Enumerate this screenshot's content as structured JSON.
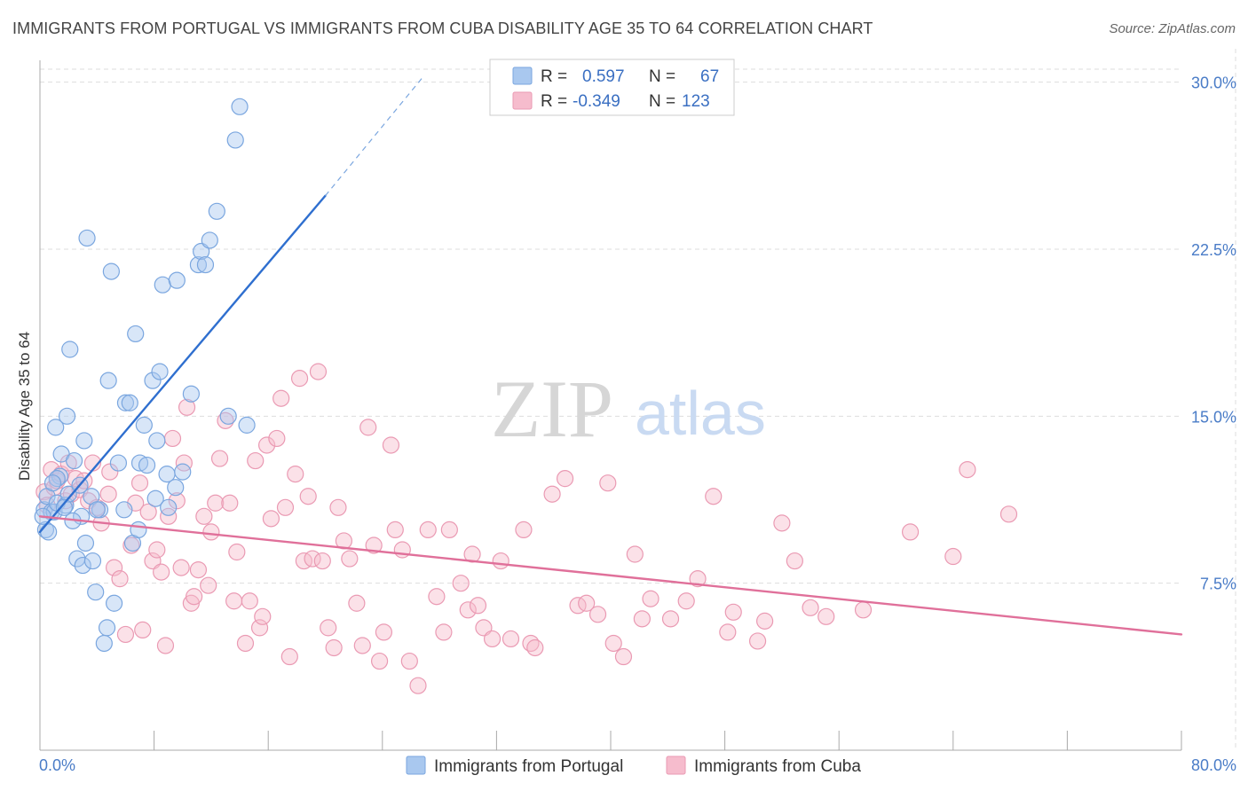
{
  "header": {
    "title": "IMMIGRANTS FROM PORTUGAL VS IMMIGRANTS FROM CUBA DISABILITY AGE 35 TO 64 CORRELATION CHART",
    "source": "Source: ZipAtlas.com"
  },
  "watermark": {
    "zip": "ZIP",
    "atlas": "atlas"
  },
  "legend": {
    "r_label": "R =",
    "n_label": "N =",
    "portugal": {
      "r": "0.597",
      "n": "67"
    },
    "cuba": {
      "r": "-0.349",
      "n": "123"
    }
  },
  "colors": {
    "portugal_fill": "#a9c8ef",
    "portugal_stroke": "#7aa6df",
    "portugal_line": "#2f6fcf",
    "cuba_fill": "#f6bccd",
    "cuba_stroke": "#ea9ab3",
    "cuba_line": "#e0709a",
    "grid": "#dddddd",
    "axis_text": "#4a7cc7"
  },
  "chart_data": {
    "type": "scatter",
    "title": "IMMIGRANTS FROM PORTUGAL VS IMMIGRANTS FROM CUBA DISABILITY AGE 35 TO 64 CORRELATION CHART",
    "xlabel": "",
    "ylabel": "Disability Age 35 to 64",
    "xlim": [
      0,
      80
    ],
    "ylim": [
      0,
      31.5
    ],
    "x_tick_labels": [
      "0.0%",
      "80.0%"
    ],
    "y_ticks": [
      7.5,
      15.0,
      22.5,
      30.0
    ],
    "y_tick_labels": [
      "7.5%",
      "15.0%",
      "22.5%",
      "30.0%"
    ],
    "grid": true,
    "legend_position": "top-center",
    "series": [
      {
        "name": "Immigrants from Portugal",
        "r": 0.597,
        "n": 67,
        "trend": {
          "x": [
            0.0,
            20.0
          ],
          "y": [
            9.8,
            24.9
          ],
          "dashed_to": [
            26.8,
            30.2
          ]
        },
        "points": [
          [
            0.3,
            10.8
          ],
          [
            0.5,
            11.4
          ],
          [
            0.4,
            9.9
          ],
          [
            0.6,
            9.8
          ],
          [
            0.8,
            10.7
          ],
          [
            1.0,
            10.7
          ],
          [
            1.2,
            11.1
          ],
          [
            1.4,
            12.3
          ],
          [
            1.1,
            14.5
          ],
          [
            1.5,
            13.3
          ],
          [
            1.8,
            11.0
          ],
          [
            2.0,
            11.5
          ],
          [
            1.9,
            15.0
          ],
          [
            2.1,
            18.0
          ],
          [
            2.4,
            13.0
          ],
          [
            2.6,
            8.6
          ],
          [
            2.8,
            11.9
          ],
          [
            2.9,
            10.5
          ],
          [
            3.0,
            8.3
          ],
          [
            3.1,
            13.9
          ],
          [
            3.2,
            9.3
          ],
          [
            3.3,
            23.0
          ],
          [
            3.6,
            11.4
          ],
          [
            3.7,
            8.5
          ],
          [
            3.9,
            7.1
          ],
          [
            4.2,
            10.8
          ],
          [
            4.5,
            4.8
          ],
          [
            4.7,
            5.5
          ],
          [
            4.8,
            16.6
          ],
          [
            5.0,
            21.5
          ],
          [
            5.2,
            6.6
          ],
          [
            5.5,
            12.9
          ],
          [
            5.9,
            10.8
          ],
          [
            6.0,
            15.6
          ],
          [
            6.3,
            15.6
          ],
          [
            6.5,
            9.3
          ],
          [
            6.7,
            18.7
          ],
          [
            6.9,
            9.9
          ],
          [
            7.0,
            12.9
          ],
          [
            7.3,
            14.6
          ],
          [
            7.5,
            12.8
          ],
          [
            7.9,
            16.6
          ],
          [
            8.1,
            11.3
          ],
          [
            8.2,
            13.9
          ],
          [
            8.4,
            17.0
          ],
          [
            8.6,
            20.9
          ],
          [
            8.9,
            12.4
          ],
          [
            9.0,
            10.9
          ],
          [
            9.5,
            11.8
          ],
          [
            9.6,
            21.1
          ],
          [
            10.0,
            12.5
          ],
          [
            10.6,
            16.0
          ],
          [
            11.1,
            21.8
          ],
          [
            11.3,
            22.4
          ],
          [
            11.6,
            21.8
          ],
          [
            11.9,
            22.9
          ],
          [
            12.4,
            24.2
          ],
          [
            13.2,
            15.0
          ],
          [
            13.7,
            27.4
          ],
          [
            14.0,
            28.9
          ],
          [
            14.5,
            14.6
          ],
          [
            1.2,
            12.2
          ],
          [
            2.3,
            10.3
          ],
          [
            0.2,
            10.5
          ],
          [
            0.9,
            12.0
          ],
          [
            1.7,
            10.9
          ],
          [
            4.0,
            10.8
          ]
        ]
      },
      {
        "name": "Immigrants from Cuba",
        "r": -0.349,
        "n": 123,
        "trend": {
          "x": [
            0.0,
            80.0
          ],
          "y": [
            10.5,
            5.2
          ]
        },
        "points": [
          [
            0.3,
            11.6
          ],
          [
            0.5,
            11.0
          ],
          [
            0.8,
            12.6
          ],
          [
            1.0,
            11.8
          ],
          [
            1.2,
            12.1
          ],
          [
            1.5,
            12.4
          ],
          [
            1.8,
            11.2
          ],
          [
            2.0,
            12.9
          ],
          [
            2.2,
            11.5
          ],
          [
            2.5,
            12.2
          ],
          [
            2.8,
            11.7
          ],
          [
            3.1,
            12.1
          ],
          [
            3.4,
            11.2
          ],
          [
            3.7,
            12.9
          ],
          [
            4.0,
            10.9
          ],
          [
            4.3,
            10.2
          ],
          [
            4.8,
            11.5
          ],
          [
            4.9,
            12.5
          ],
          [
            5.2,
            8.2
          ],
          [
            5.6,
            7.7
          ],
          [
            6.0,
            5.2
          ],
          [
            6.4,
            9.2
          ],
          [
            6.7,
            11.1
          ],
          [
            7.0,
            12.0
          ],
          [
            7.2,
            5.4
          ],
          [
            7.6,
            10.7
          ],
          [
            7.9,
            8.5
          ],
          [
            8.2,
            9.0
          ],
          [
            8.5,
            8.0
          ],
          [
            8.8,
            4.7
          ],
          [
            9.0,
            10.5
          ],
          [
            9.3,
            14.0
          ],
          [
            9.6,
            11.2
          ],
          [
            9.9,
            8.2
          ],
          [
            10.1,
            12.9
          ],
          [
            10.3,
            15.4
          ],
          [
            10.6,
            6.6
          ],
          [
            10.8,
            6.9
          ],
          [
            11.1,
            8.1
          ],
          [
            11.5,
            10.5
          ],
          [
            11.8,
            7.4
          ],
          [
            12.0,
            9.8
          ],
          [
            12.3,
            11.1
          ],
          [
            12.6,
            13.1
          ],
          [
            13.0,
            14.8
          ],
          [
            13.3,
            11.1
          ],
          [
            13.6,
            6.7
          ],
          [
            13.8,
            8.9
          ],
          [
            14.4,
            4.8
          ],
          [
            14.7,
            6.7
          ],
          [
            15.1,
            13.0
          ],
          [
            15.4,
            5.5
          ],
          [
            15.6,
            6.0
          ],
          [
            15.9,
            13.7
          ],
          [
            16.2,
            10.4
          ],
          [
            16.6,
            14.0
          ],
          [
            16.9,
            15.8
          ],
          [
            17.2,
            10.9
          ],
          [
            17.5,
            4.2
          ],
          [
            17.9,
            12.4
          ],
          [
            18.2,
            16.7
          ],
          [
            18.5,
            8.5
          ],
          [
            18.8,
            11.4
          ],
          [
            19.1,
            8.6
          ],
          [
            19.5,
            17.0
          ],
          [
            19.8,
            8.5
          ],
          [
            20.2,
            5.5
          ],
          [
            20.6,
            4.6
          ],
          [
            20.9,
            10.9
          ],
          [
            21.3,
            9.4
          ],
          [
            21.7,
            8.6
          ],
          [
            22.2,
            6.6
          ],
          [
            22.6,
            4.7
          ],
          [
            23.0,
            14.5
          ],
          [
            23.4,
            9.2
          ],
          [
            23.8,
            4.0
          ],
          [
            24.1,
            5.3
          ],
          [
            24.6,
            13.7
          ],
          [
            24.9,
            9.9
          ],
          [
            25.4,
            9.0
          ],
          [
            25.9,
            4.0
          ],
          [
            26.5,
            2.9
          ],
          [
            27.2,
            9.9
          ],
          [
            27.8,
            6.9
          ],
          [
            28.3,
            5.3
          ],
          [
            28.7,
            9.9
          ],
          [
            29.5,
            7.5
          ],
          [
            30.0,
            6.3
          ],
          [
            30.3,
            8.8
          ],
          [
            30.7,
            6.5
          ],
          [
            31.1,
            5.5
          ],
          [
            31.7,
            5.0
          ],
          [
            32.3,
            8.5
          ],
          [
            33.0,
            5.0
          ],
          [
            33.9,
            9.9
          ],
          [
            34.4,
            4.8
          ],
          [
            34.7,
            4.6
          ],
          [
            35.9,
            11.5
          ],
          [
            36.8,
            12.2
          ],
          [
            37.7,
            6.5
          ],
          [
            38.3,
            6.6
          ],
          [
            39.1,
            6.1
          ],
          [
            39.8,
            12.0
          ],
          [
            40.2,
            4.8
          ],
          [
            40.9,
            4.2
          ],
          [
            41.7,
            8.8
          ],
          [
            42.2,
            5.9
          ],
          [
            42.8,
            6.8
          ],
          [
            44.2,
            5.9
          ],
          [
            45.3,
            6.7
          ],
          [
            46.1,
            7.7
          ],
          [
            47.2,
            11.4
          ],
          [
            48.2,
            5.3
          ],
          [
            48.6,
            6.2
          ],
          [
            50.3,
            4.9
          ],
          [
            50.8,
            5.8
          ],
          [
            52.0,
            10.2
          ],
          [
            52.9,
            8.5
          ],
          [
            54.0,
            6.4
          ],
          [
            55.1,
            6.0
          ],
          [
            57.7,
            6.3
          ],
          [
            61.0,
            9.8
          ],
          [
            64.0,
            8.7
          ],
          [
            65.0,
            12.6
          ],
          [
            67.9,
            10.6
          ]
        ]
      }
    ]
  },
  "bottom_legend": {
    "portugal_label": "Immigrants from Portugal",
    "cuba_label": "Immigrants from Cuba"
  }
}
